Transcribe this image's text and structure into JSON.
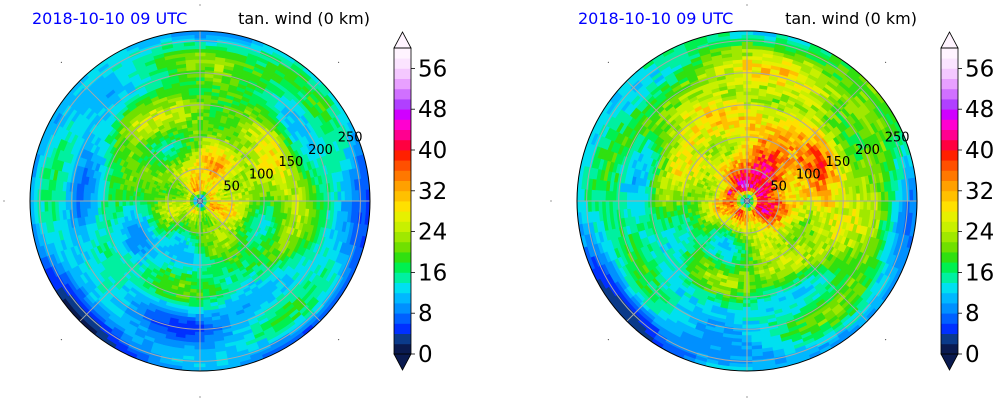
{
  "chart_data": [
    {
      "type": "heatmap",
      "projection": "polar",
      "title_left": "2018-10-10 09 UTC",
      "title_right": "tan. wind (0 km)",
      "title_left_color": "#0000ff",
      "radial_ticks": [
        "50",
        "100",
        "150",
        "200",
        "250"
      ],
      "rlim": [
        0,
        265
      ],
      "grid": true,
      "colorbar": {
        "ticks": [
          "0",
          "8",
          "16",
          "24",
          "32",
          "40",
          "48",
          "56"
        ],
        "vmin": 0,
        "vmax": 60,
        "extend": "both",
        "levels": [
          {
            "v": 0,
            "c": "#0a1a50"
          },
          {
            "v": 2,
            "c": "#0b3a8a"
          },
          {
            "v": 4,
            "c": "#0030ff"
          },
          {
            "v": 6,
            "c": "#0060ff"
          },
          {
            "v": 8,
            "c": "#0090ff"
          },
          {
            "v": 10,
            "c": "#00b8ff"
          },
          {
            "v": 12,
            "c": "#00e0f0"
          },
          {
            "v": 14,
            "c": "#00f0a0"
          },
          {
            "v": 16,
            "c": "#00f050"
          },
          {
            "v": 18,
            "c": "#30e010"
          },
          {
            "v": 20,
            "c": "#70e000"
          },
          {
            "v": 22,
            "c": "#a0e800"
          },
          {
            "v": 24,
            "c": "#c8f000"
          },
          {
            "v": 26,
            "c": "#e6f000"
          },
          {
            "v": 28,
            "c": "#ffe000"
          },
          {
            "v": 30,
            "c": "#ffc000"
          },
          {
            "v": 32,
            "c": "#ffa000"
          },
          {
            "v": 34,
            "c": "#ff7800"
          },
          {
            "v": 36,
            "c": "#ff5000"
          },
          {
            "v": 38,
            "c": "#ff2000"
          },
          {
            "v": 40,
            "c": "#ff0040"
          },
          {
            "v": 42,
            "c": "#ff0090"
          },
          {
            "v": 44,
            "c": "#ff00d0"
          },
          {
            "v": 46,
            "c": "#d000ff"
          },
          {
            "v": 48,
            "c": "#b040ff"
          },
          {
            "v": 50,
            "c": "#d070ff"
          },
          {
            "v": 52,
            "c": "#e8a0ff"
          },
          {
            "v": 54,
            "c": "#f4c8ff"
          },
          {
            "v": 56,
            "c": "#fbe4ff"
          },
          {
            "v": 58,
            "c": "#fff4ff"
          }
        ]
      },
      "field": {
        "eye_speed": 2,
        "peak_speed": 31,
        "rmw": 18,
        "outer_speed": 12,
        "asymmetry": 0.25,
        "noise": 0.22,
        "seed": 7,
        "hot_spots": []
      }
    },
    {
      "type": "heatmap",
      "projection": "polar",
      "title_left": "2018-10-10 09 UTC",
      "title_right": "tan. wind (0 km)",
      "title_left_color": "#0000ff",
      "radial_ticks": [
        "50",
        "100",
        "150",
        "200",
        "250"
      ],
      "rlim": [
        0,
        265
      ],
      "grid": true,
      "colorbar": {
        "ticks": [
          "0",
          "8",
          "16",
          "24",
          "32",
          "40",
          "48",
          "56"
        ],
        "vmin": 0,
        "vmax": 60,
        "extend": "both"
      },
      "field": {
        "eye_speed": 3,
        "peak_speed": 40,
        "rmw": 22,
        "outer_speed": 13,
        "asymmetry": 0.3,
        "noise": 0.25,
        "seed": 19,
        "hot_spots": [
          {
            "angle_deg": 155,
            "radius": 30,
            "speed": 50
          },
          {
            "angle_deg": 95,
            "radius": 22,
            "speed": 40
          }
        ]
      }
    }
  ]
}
